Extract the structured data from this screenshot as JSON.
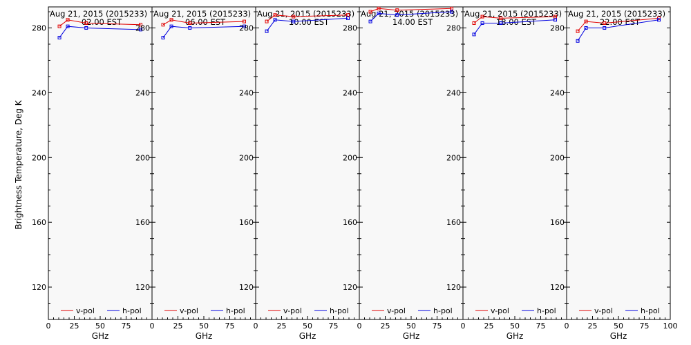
{
  "chart_data": {
    "type": "line",
    "ylabel": "Brightness Temperature, Deg K",
    "xlabel": "GHz",
    "xlim": [
      0,
      100
    ],
    "ylim": [
      100,
      293
    ],
    "x_ticks": [
      0,
      25,
      50,
      75,
      100
    ],
    "y_ticks": [
      120,
      160,
      200,
      240,
      280
    ],
    "grid": false,
    "legend": "bottom",
    "colors": {
      "v-pol": "#e00000",
      "h-pol": "#0000e0",
      "background": "#f8f8f8"
    },
    "x": [
      10.7,
      18.7,
      36.5,
      89.0
    ],
    "panels": [
      {
        "title": "Aug 21, 2015 (2015233)",
        "subtitle": "02.00 EST",
        "series": [
          {
            "name": "v-pol",
            "values": [
              281,
              285,
              283,
              282
            ]
          },
          {
            "name": "h-pol",
            "values": [
              274,
              281,
              280,
              279
            ]
          }
        ]
      },
      {
        "title": "Aug 21, 2015 (2015233)",
        "subtitle": "06.00 EST",
        "series": [
          {
            "name": "v-pol",
            "values": [
              282,
              285,
              283,
              284
            ]
          },
          {
            "name": "h-pol",
            "values": [
              274,
              281,
              280,
              281
            ]
          }
        ]
      },
      {
        "title": "Aug 21, 2015 (2015233)",
        "subtitle": "10.00 EST",
        "series": [
          {
            "name": "v-pol",
            "values": [
              284,
              288,
              287,
              288
            ]
          },
          {
            "name": "h-pol",
            "values": [
              278,
              285,
              284,
              286
            ]
          }
        ]
      },
      {
        "title": "Aug 21, 2015 (2015233)",
        "subtitle": "14.00 EST",
        "series": [
          {
            "name": "v-pol",
            "values": [
              290,
              292,
              291,
              292
            ]
          },
          {
            "name": "h-pol",
            "values": [
              284,
              289,
              288,
              290
            ]
          }
        ]
      },
      {
        "title": "Aug 21, 2015 (2015233)",
        "subtitle": "18.00 EST",
        "series": [
          {
            "name": "v-pol",
            "values": [
              283,
              287,
              286,
              287
            ]
          },
          {
            "name": "h-pol",
            "values": [
              276,
              283,
              283,
              285
            ]
          }
        ]
      },
      {
        "title": "Aug 21, 2015 (2015233)",
        "subtitle": "22.00 EST",
        "series": [
          {
            "name": "v-pol",
            "values": [
              278,
              284,
              283,
              286
            ]
          },
          {
            "name": "h-pol",
            "values": [
              272,
              280,
              280,
              285
            ]
          }
        ]
      }
    ]
  }
}
